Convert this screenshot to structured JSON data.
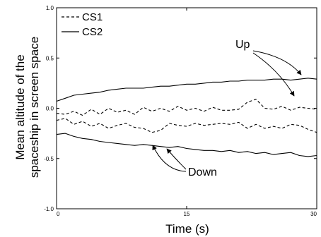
{
  "chart_data": {
    "type": "line",
    "xlabel": "Time (s)",
    "ylabel_lines": [
      "Mean altitude of the",
      "spaceship in screen space"
    ],
    "xlim": [
      0,
      30
    ],
    "ylim": [
      -1.0,
      1.0
    ],
    "xticks": [
      0,
      15,
      30
    ],
    "xtick_labels": [
      "0",
      "15",
      "30"
    ],
    "yticks": [
      1.0,
      0.5,
      0.0,
      -0.5,
      -1.0
    ],
    "ytick_labels": [
      "1.0",
      "0.5",
      "0.0",
      "-0.5",
      "-1.0"
    ],
    "grid": false,
    "legend_position": "top-left",
    "legend": [
      {
        "name": "CS1",
        "style": "dashed"
      },
      {
        "name": "CS2",
        "style": "solid"
      }
    ],
    "annotations": [
      {
        "text": "Up",
        "targets": [
          [
            28.5,
            0.3
          ],
          [
            28.6,
            0.01
          ]
        ]
      },
      {
        "text": "Down",
        "targets": [
          [
            11.4,
            -0.36
          ],
          [
            11.2,
            -0.22
          ]
        ]
      }
    ],
    "series": [
      {
        "name": "CS2 (Up)",
        "style": "solid",
        "x": [
          0,
          1,
          2,
          3,
          4,
          5,
          6,
          7,
          8,
          9,
          10,
          11,
          12,
          13,
          14,
          15,
          16,
          17,
          18,
          19,
          20,
          21,
          22,
          23,
          24,
          25,
          26,
          27,
          28,
          29,
          30
        ],
        "y": [
          0.07,
          0.1,
          0.13,
          0.14,
          0.15,
          0.16,
          0.18,
          0.19,
          0.2,
          0.2,
          0.2,
          0.21,
          0.22,
          0.22,
          0.23,
          0.24,
          0.24,
          0.25,
          0.26,
          0.26,
          0.27,
          0.27,
          0.28,
          0.28,
          0.28,
          0.29,
          0.29,
          0.28,
          0.29,
          0.3,
          0.29
        ]
      },
      {
        "name": "CS1 (Up)",
        "style": "dashed",
        "x": [
          0,
          1,
          2,
          3,
          4,
          5,
          6,
          7,
          8,
          9,
          10,
          11,
          12,
          13,
          14,
          15,
          16,
          17,
          18,
          19,
          20,
          21,
          22,
          23,
          24,
          25,
          26,
          27,
          28,
          29,
          30
        ],
        "y": [
          -0.05,
          -0.06,
          -0.03,
          -0.07,
          -0.01,
          -0.06,
          0.0,
          -0.04,
          -0.02,
          -0.06,
          0.01,
          -0.03,
          0.0,
          -0.03,
          0.02,
          -0.02,
          0.0,
          -0.03,
          0.01,
          -0.02,
          -0.02,
          -0.01,
          0.06,
          0.09,
          0.0,
          -0.01,
          0.02,
          -0.02,
          0.01,
          0.0,
          -0.01
        ]
      },
      {
        "name": "CS1 (Down)",
        "style": "dashed",
        "x": [
          0,
          1,
          2,
          3,
          4,
          5,
          6,
          7,
          8,
          9,
          10,
          11,
          12,
          13,
          14,
          15,
          16,
          17,
          18,
          19,
          20,
          21,
          22,
          23,
          24,
          25,
          26,
          27,
          28,
          29,
          30
        ],
        "y": [
          -0.12,
          -0.1,
          -0.16,
          -0.13,
          -0.18,
          -0.15,
          -0.2,
          -0.17,
          -0.15,
          -0.19,
          -0.2,
          -0.24,
          -0.22,
          -0.15,
          -0.17,
          -0.18,
          -0.15,
          -0.17,
          -0.16,
          -0.15,
          -0.16,
          -0.14,
          -0.2,
          -0.16,
          -0.2,
          -0.18,
          -0.2,
          -0.16,
          -0.17,
          -0.21,
          -0.24
        ]
      },
      {
        "name": "CS2 (Down)",
        "style": "solid",
        "x": [
          0,
          1,
          2,
          3,
          4,
          5,
          6,
          7,
          8,
          9,
          10,
          11,
          12,
          13,
          14,
          15,
          16,
          17,
          18,
          19,
          20,
          21,
          22,
          23,
          24,
          25,
          26,
          27,
          28,
          29,
          30
        ],
        "y": [
          -0.26,
          -0.25,
          -0.28,
          -0.3,
          -0.31,
          -0.33,
          -0.34,
          -0.35,
          -0.36,
          -0.37,
          -0.36,
          -0.37,
          -0.38,
          -0.39,
          -0.38,
          -0.4,
          -0.41,
          -0.42,
          -0.42,
          -0.43,
          -0.42,
          -0.44,
          -0.43,
          -0.45,
          -0.44,
          -0.46,
          -0.45,
          -0.44,
          -0.47,
          -0.48,
          -0.47
        ]
      }
    ]
  }
}
